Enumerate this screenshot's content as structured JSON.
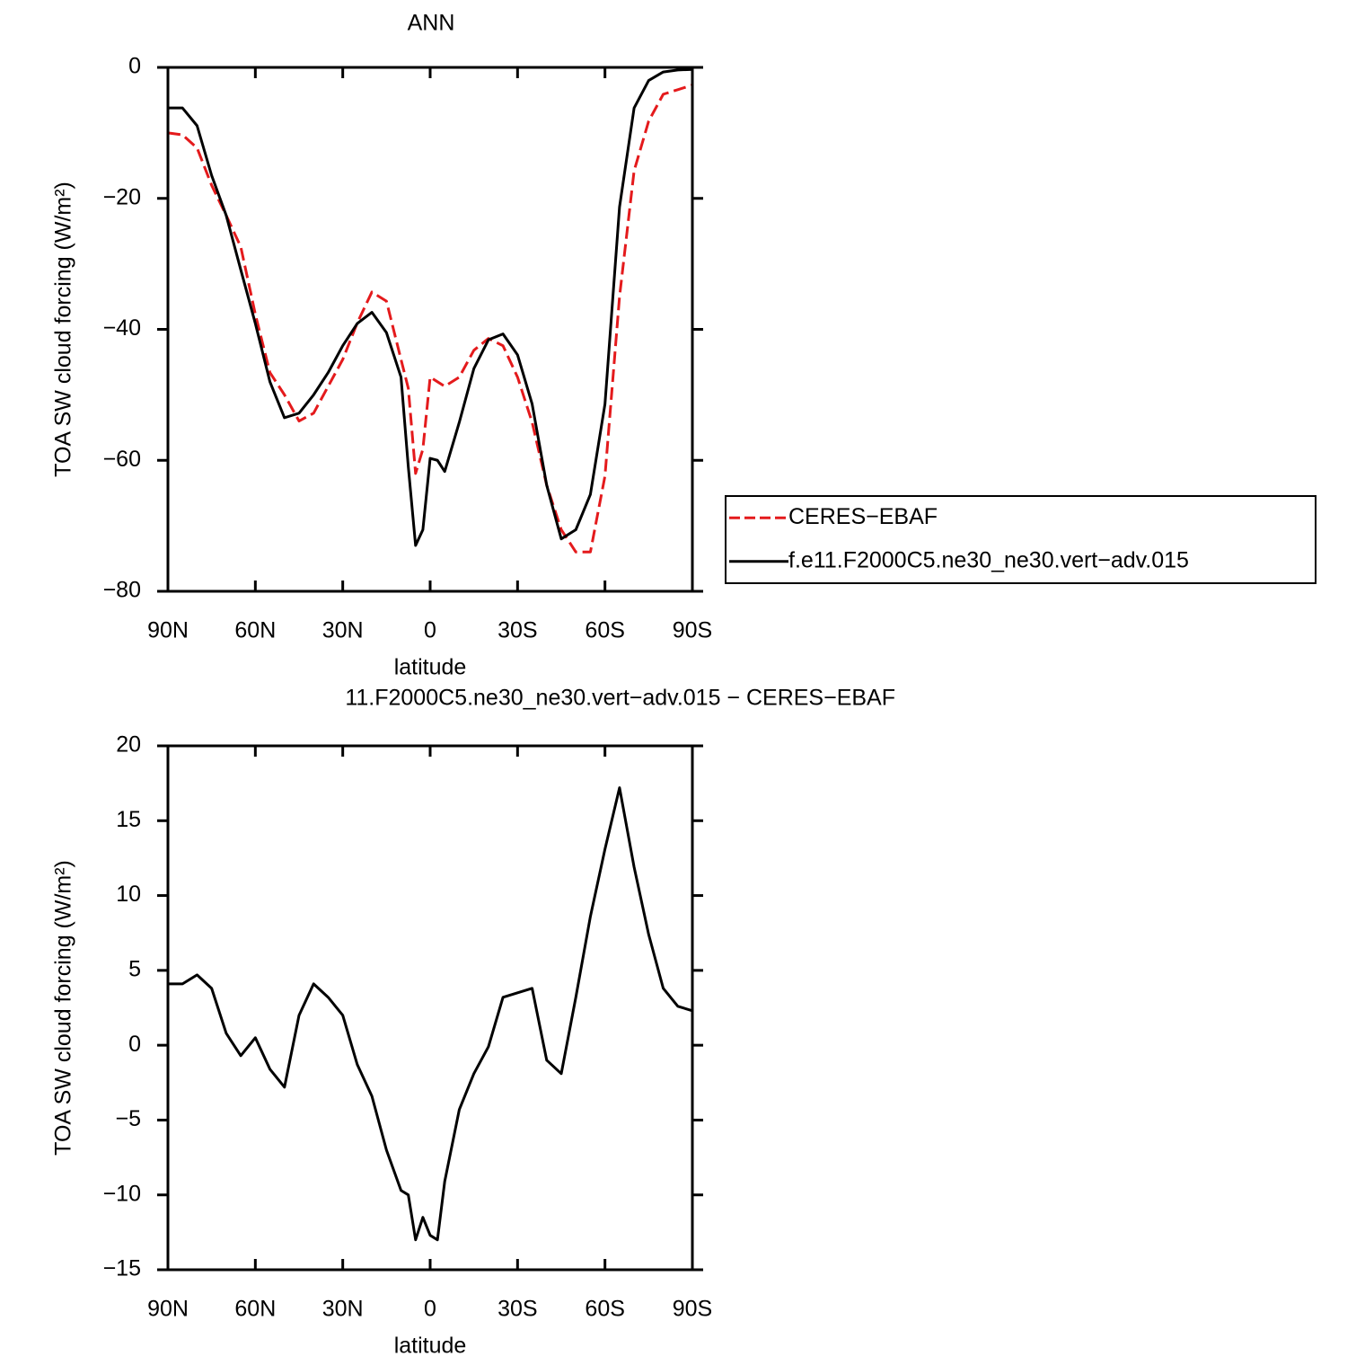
{
  "chart_data": [
    {
      "type": "line",
      "title": "ANN",
      "xlabel": "latitude",
      "ylabel": "TOA SW cloud forcing (W/m²)",
      "x": [
        90,
        85,
        80,
        75,
        70,
        65,
        60,
        55,
        50,
        45,
        40,
        35,
        30,
        25,
        20,
        15,
        10,
        7.5,
        5,
        2.5,
        0,
        -2.5,
        -5,
        -10,
        -15,
        -20,
        -25,
        -30,
        -35,
        -40,
        -45,
        -50,
        -55,
        -60,
        -65,
        -70,
        -75,
        -80,
        -85,
        -90
      ],
      "xlim": [
        90,
        -90
      ],
      "xticks": [
        {
          "value": 90,
          "label": "90N"
        },
        {
          "value": 60,
          "label": "60N"
        },
        {
          "value": 30,
          "label": "30N"
        },
        0,
        {
          "value": -30,
          "label": "30S"
        },
        {
          "value": -60,
          "label": "60S"
        },
        {
          "value": -90,
          "label": "90S"
        }
      ],
      "ylim": [
        -80,
        0
      ],
      "yticks": [
        0,
        {
          "value": -20,
          "label": "−20"
        },
        {
          "value": -40,
          "label": "−40"
        },
        {
          "value": -60,
          "label": "−60"
        },
        {
          "value": -80,
          "label": "−80"
        }
      ],
      "legend_position": "right",
      "series": [
        {
          "name": "CERES−EBAF",
          "color": "#e41a1c",
          "dashed": true,
          "values": [
            -10,
            -10.3,
            -12.3,
            -18,
            -22.6,
            -27.4,
            -37.7,
            -46.6,
            -50,
            -54,
            -52.8,
            -48.7,
            -44.6,
            -39,
            -34.3,
            -35.7,
            -44.6,
            -49,
            -62,
            -58.3,
            -47.3,
            -48,
            -48.7,
            -47.3,
            -43.2,
            -41.4,
            -42.5,
            -47.3,
            -54.2,
            -63.8,
            -70.6,
            -74,
            -74,
            -62.4,
            -35,
            -15.8,
            -8.2,
            -4.1,
            -3.4,
            -2.7
          ]
        },
        {
          "name": "f.e11.F2000C5.ne30_ne30.vert−adv.015",
          "color": "#000000",
          "dashed": false,
          "values": [
            -6.2,
            -6.2,
            -8.9,
            -16.5,
            -22.6,
            -30.9,
            -39.1,
            -48,
            -53.5,
            -52.8,
            -50,
            -46.6,
            -42.5,
            -39.1,
            -37.4,
            -40.5,
            -47.3,
            -61,
            -73,
            -70.6,
            -59.7,
            -60,
            -61.7,
            -54.2,
            -46,
            -41.6,
            -40.7,
            -43.9,
            -51.4,
            -63.8,
            -72,
            -70.6,
            -65.2,
            -51.4,
            -21.3,
            -6.2,
            -2,
            -0.7,
            -0.4,
            -0.3
          ]
        }
      ]
    },
    {
      "type": "line",
      "title": "11.F2000C5.ne30_ne30.vert−adv.015 − CERES−EBAF",
      "xlabel": "latitude",
      "ylabel": "TOA SW cloud forcing (W/m²)",
      "x": [
        90,
        85,
        80,
        75,
        70,
        65,
        60,
        55,
        50,
        45,
        40,
        35,
        30,
        25,
        20,
        15,
        10,
        7.5,
        5,
        2.5,
        0,
        -2.5,
        -5,
        -10,
        -15,
        -20,
        -25,
        -30,
        -35,
        -40,
        -45,
        -50,
        -55,
        -60,
        -65,
        -70,
        -75,
        -80,
        -85,
        -90
      ],
      "xlim": [
        90,
        -90
      ],
      "xticks": [
        {
          "value": 90,
          "label": "90N"
        },
        {
          "value": 60,
          "label": "60N"
        },
        {
          "value": 30,
          "label": "30N"
        },
        0,
        {
          "value": -30,
          "label": "30S"
        },
        {
          "value": -60,
          "label": "60S"
        },
        {
          "value": -90,
          "label": "90S"
        }
      ],
      "ylim": [
        -15,
        20
      ],
      "yticks": [
        20,
        15,
        10,
        5,
        0,
        {
          "value": -5,
          "label": "−5"
        },
        {
          "value": -10,
          "label": "−10"
        },
        {
          "value": -15,
          "label": "−15"
        }
      ],
      "series": [
        {
          "color": "#000000",
          "dashed": false,
          "values": [
            4.1,
            4.1,
            4.7,
            3.8,
            0.8,
            -0.7,
            0.5,
            -1.6,
            -2.8,
            2,
            4.1,
            3.2,
            2,
            -1.3,
            -3.4,
            -7,
            -9.7,
            -10,
            -13,
            -11.5,
            -12.7,
            -13,
            -9.1,
            -4.3,
            -1.9,
            -0.1,
            3.2,
            3.5,
            3.8,
            -1,
            -1.9,
            3.2,
            8.6,
            13.1,
            17.2,
            11.9,
            7.4,
            3.8,
            2.6,
            2.3
          ]
        }
      ]
    }
  ]
}
